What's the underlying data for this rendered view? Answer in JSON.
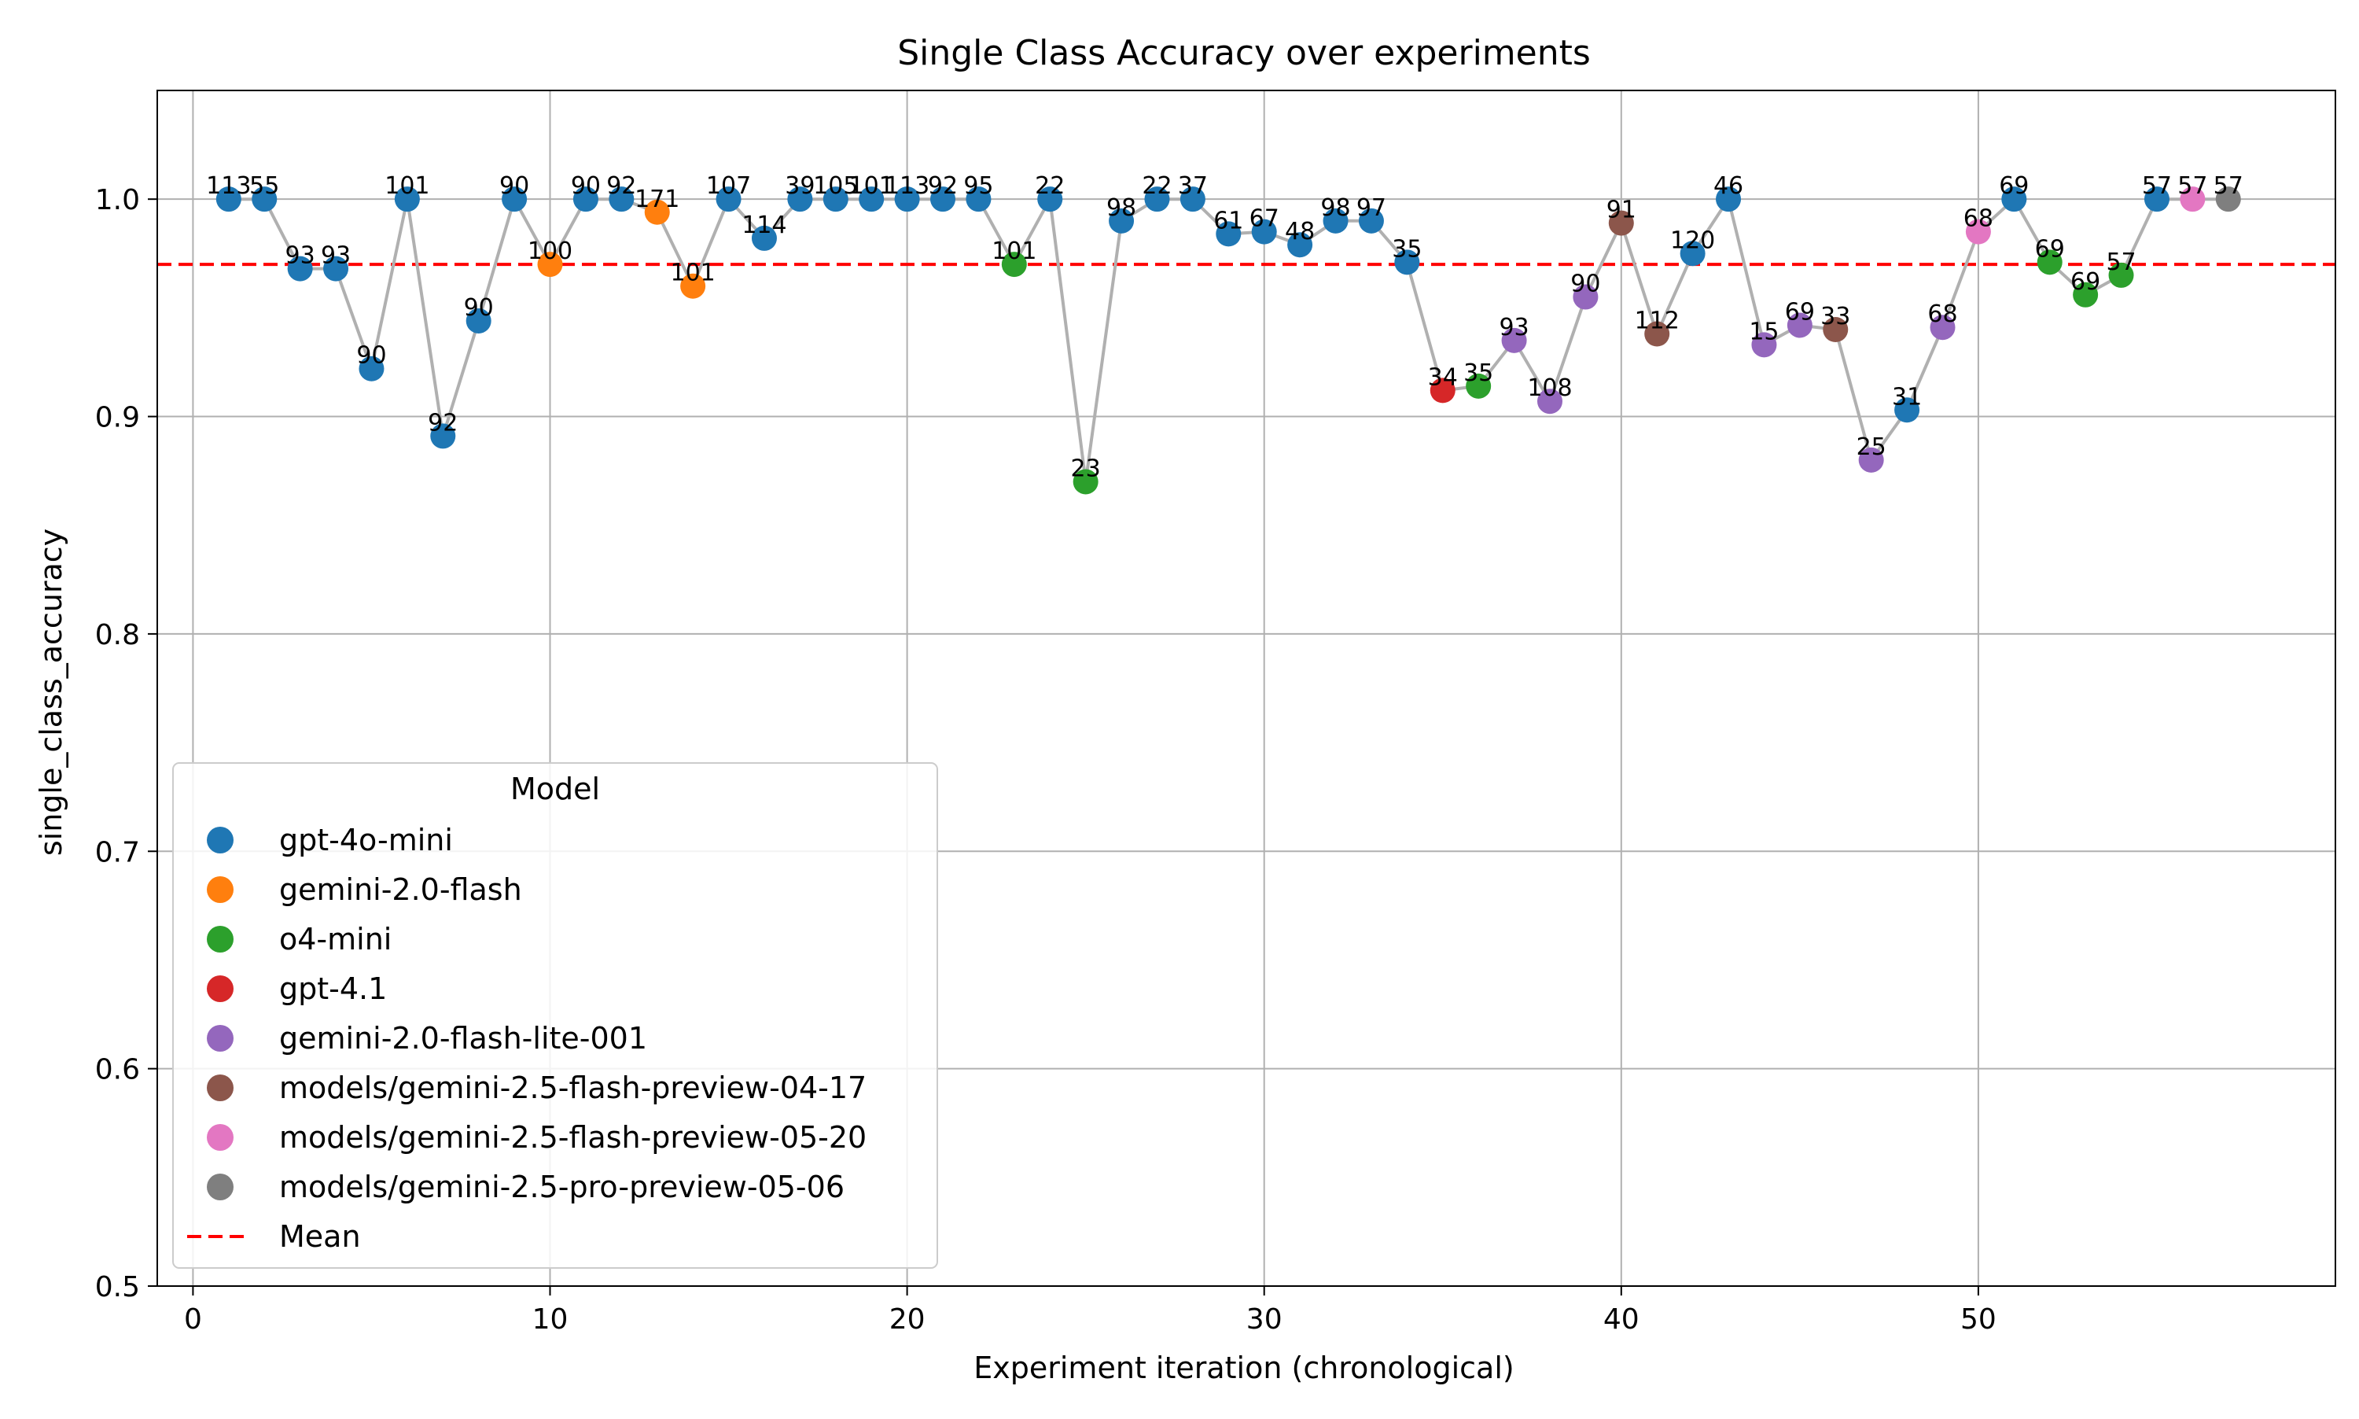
{
  "chart_data": {
    "type": "scatter",
    "title": "Single Class Accuracy over experiments",
    "xlabel": "Experiment iteration (chronological)",
    "ylabel": "single_class_accuracy",
    "xlim": [
      -1,
      60
    ],
    "ylim": [
      0.5,
      1.05
    ],
    "xticks": [
      0,
      10,
      20,
      30,
      40,
      50
    ],
    "yticks": [
      0.5,
      0.6,
      0.7,
      0.8,
      0.9,
      1.0
    ],
    "xtick_labels": [
      "0",
      "10",
      "20",
      "30",
      "40",
      "50"
    ],
    "ytick_labels": [
      "0.5",
      "0.6",
      "0.7",
      "0.8",
      "0.9",
      "1.0"
    ],
    "grid": true,
    "line_color": "#b0b0b0",
    "mean": {
      "value": 0.97,
      "label": "Mean",
      "color": "#ff0000"
    },
    "legend": {
      "title": "Model",
      "placement": "lower-left"
    },
    "models": [
      {
        "name": "gpt-4o-mini",
        "color": "#1f77b4"
      },
      {
        "name": "gemini-2.0-flash",
        "color": "#ff7f0e"
      },
      {
        "name": "o4-mini",
        "color": "#2ca02c"
      },
      {
        "name": "gpt-4.1",
        "color": "#d62728"
      },
      {
        "name": "gemini-2.0-flash-lite-001",
        "color": "#9467bd"
      },
      {
        "name": "models/gemini-2.5-flash-preview-04-17",
        "color": "#8c564b"
      },
      {
        "name": "models/gemini-2.5-flash-preview-05-20",
        "color": "#e377c2"
      },
      {
        "name": "models/gemini-2.5-pro-preview-05-06",
        "color": "#7f7f7f"
      }
    ],
    "points": [
      {
        "x": 1,
        "y": 1.0,
        "label": "113",
        "model": 0
      },
      {
        "x": 2,
        "y": 1.0,
        "label": "55",
        "model": 0
      },
      {
        "x": 3,
        "y": 0.968,
        "label": "93",
        "model": 0
      },
      {
        "x": 4,
        "y": 0.968,
        "label": "93",
        "model": 0
      },
      {
        "x": 5,
        "y": 0.922,
        "label": "90",
        "model": 0
      },
      {
        "x": 6,
        "y": 1.0,
        "label": "101",
        "model": 0
      },
      {
        "x": 7,
        "y": 0.891,
        "label": "92",
        "model": 0
      },
      {
        "x": 8,
        "y": 0.944,
        "label": "90",
        "model": 0
      },
      {
        "x": 9,
        "y": 1.0,
        "label": "90",
        "model": 0
      },
      {
        "x": 10,
        "y": 0.97,
        "label": "100",
        "model": 1
      },
      {
        "x": 11,
        "y": 1.0,
        "label": "90",
        "model": 0
      },
      {
        "x": 12,
        "y": 1.0,
        "label": "92",
        "model": 0
      },
      {
        "x": 13,
        "y": 0.994,
        "label": "171",
        "model": 1
      },
      {
        "x": 14,
        "y": 0.96,
        "label": "101",
        "model": 1
      },
      {
        "x": 15,
        "y": 1.0,
        "label": "107",
        "model": 0
      },
      {
        "x": 16,
        "y": 0.982,
        "label": "114",
        "model": 0
      },
      {
        "x": 17,
        "y": 1.0,
        "label": "39",
        "model": 0
      },
      {
        "x": 18,
        "y": 1.0,
        "label": "105",
        "model": 0
      },
      {
        "x": 19,
        "y": 1.0,
        "label": "101",
        "model": 0
      },
      {
        "x": 20,
        "y": 1.0,
        "label": "113",
        "model": 0
      },
      {
        "x": 21,
        "y": 1.0,
        "label": "92",
        "model": 0
      },
      {
        "x": 22,
        "y": 1.0,
        "label": "95",
        "model": 0
      },
      {
        "x": 23,
        "y": 0.97,
        "label": "101",
        "model": 2
      },
      {
        "x": 24,
        "y": 1.0,
        "label": "22",
        "model": 0
      },
      {
        "x": 25,
        "y": 0.87,
        "label": "23",
        "model": 2
      },
      {
        "x": 26,
        "y": 0.99,
        "label": "98",
        "model": 0
      },
      {
        "x": 27,
        "y": 1.0,
        "label": "22",
        "model": 0
      },
      {
        "x": 28,
        "y": 1.0,
        "label": "37",
        "model": 0
      },
      {
        "x": 29,
        "y": 0.984,
        "label": "61",
        "model": 0
      },
      {
        "x": 30,
        "y": 0.985,
        "label": "67",
        "model": 0
      },
      {
        "x": 31,
        "y": 0.979,
        "label": "48",
        "model": 0
      },
      {
        "x": 32,
        "y": 0.99,
        "label": "98",
        "model": 0
      },
      {
        "x": 33,
        "y": 0.99,
        "label": "97",
        "model": 0
      },
      {
        "x": 34,
        "y": 0.971,
        "label": "35",
        "model": 0
      },
      {
        "x": 35,
        "y": 0.912,
        "label": "34",
        "model": 3
      },
      {
        "x": 36,
        "y": 0.914,
        "label": "35",
        "model": 2
      },
      {
        "x": 37,
        "y": 0.935,
        "label": "93",
        "model": 4
      },
      {
        "x": 38,
        "y": 0.907,
        "label": "108",
        "model": 4
      },
      {
        "x": 39,
        "y": 0.955,
        "label": "90",
        "model": 4
      },
      {
        "x": 40,
        "y": 0.989,
        "label": "91",
        "model": 5
      },
      {
        "x": 41,
        "y": 0.938,
        "label": "112",
        "model": 5
      },
      {
        "x": 42,
        "y": 0.975,
        "label": "120",
        "model": 0
      },
      {
        "x": 43,
        "y": 1.0,
        "label": "46",
        "model": 0
      },
      {
        "x": 44,
        "y": 0.933,
        "label": "15",
        "model": 4
      },
      {
        "x": 45,
        "y": 0.942,
        "label": "69",
        "model": 4
      },
      {
        "x": 46,
        "y": 0.94,
        "label": "33",
        "model": 5
      },
      {
        "x": 47,
        "y": 0.88,
        "label": "25",
        "model": 4
      },
      {
        "x": 48,
        "y": 0.903,
        "label": "31",
        "model": 0
      },
      {
        "x": 49,
        "y": 0.941,
        "label": "68",
        "model": 4
      },
      {
        "x": 50,
        "y": 0.985,
        "label": "68",
        "model": 6
      },
      {
        "x": 51,
        "y": 1.0,
        "label": "69",
        "model": 0
      },
      {
        "x": 52,
        "y": 0.971,
        "label": "69",
        "model": 2
      },
      {
        "x": 53,
        "y": 0.956,
        "label": "69",
        "model": 2
      },
      {
        "x": 54,
        "y": 0.965,
        "label": "57",
        "model": 2
      },
      {
        "x": 55,
        "y": 1.0,
        "label": "57",
        "model": 0
      },
      {
        "x": 56,
        "y": 1.0,
        "label": "57",
        "model": 6
      },
      {
        "x": 57,
        "y": 1.0,
        "label": "57",
        "model": 7
      }
    ]
  }
}
